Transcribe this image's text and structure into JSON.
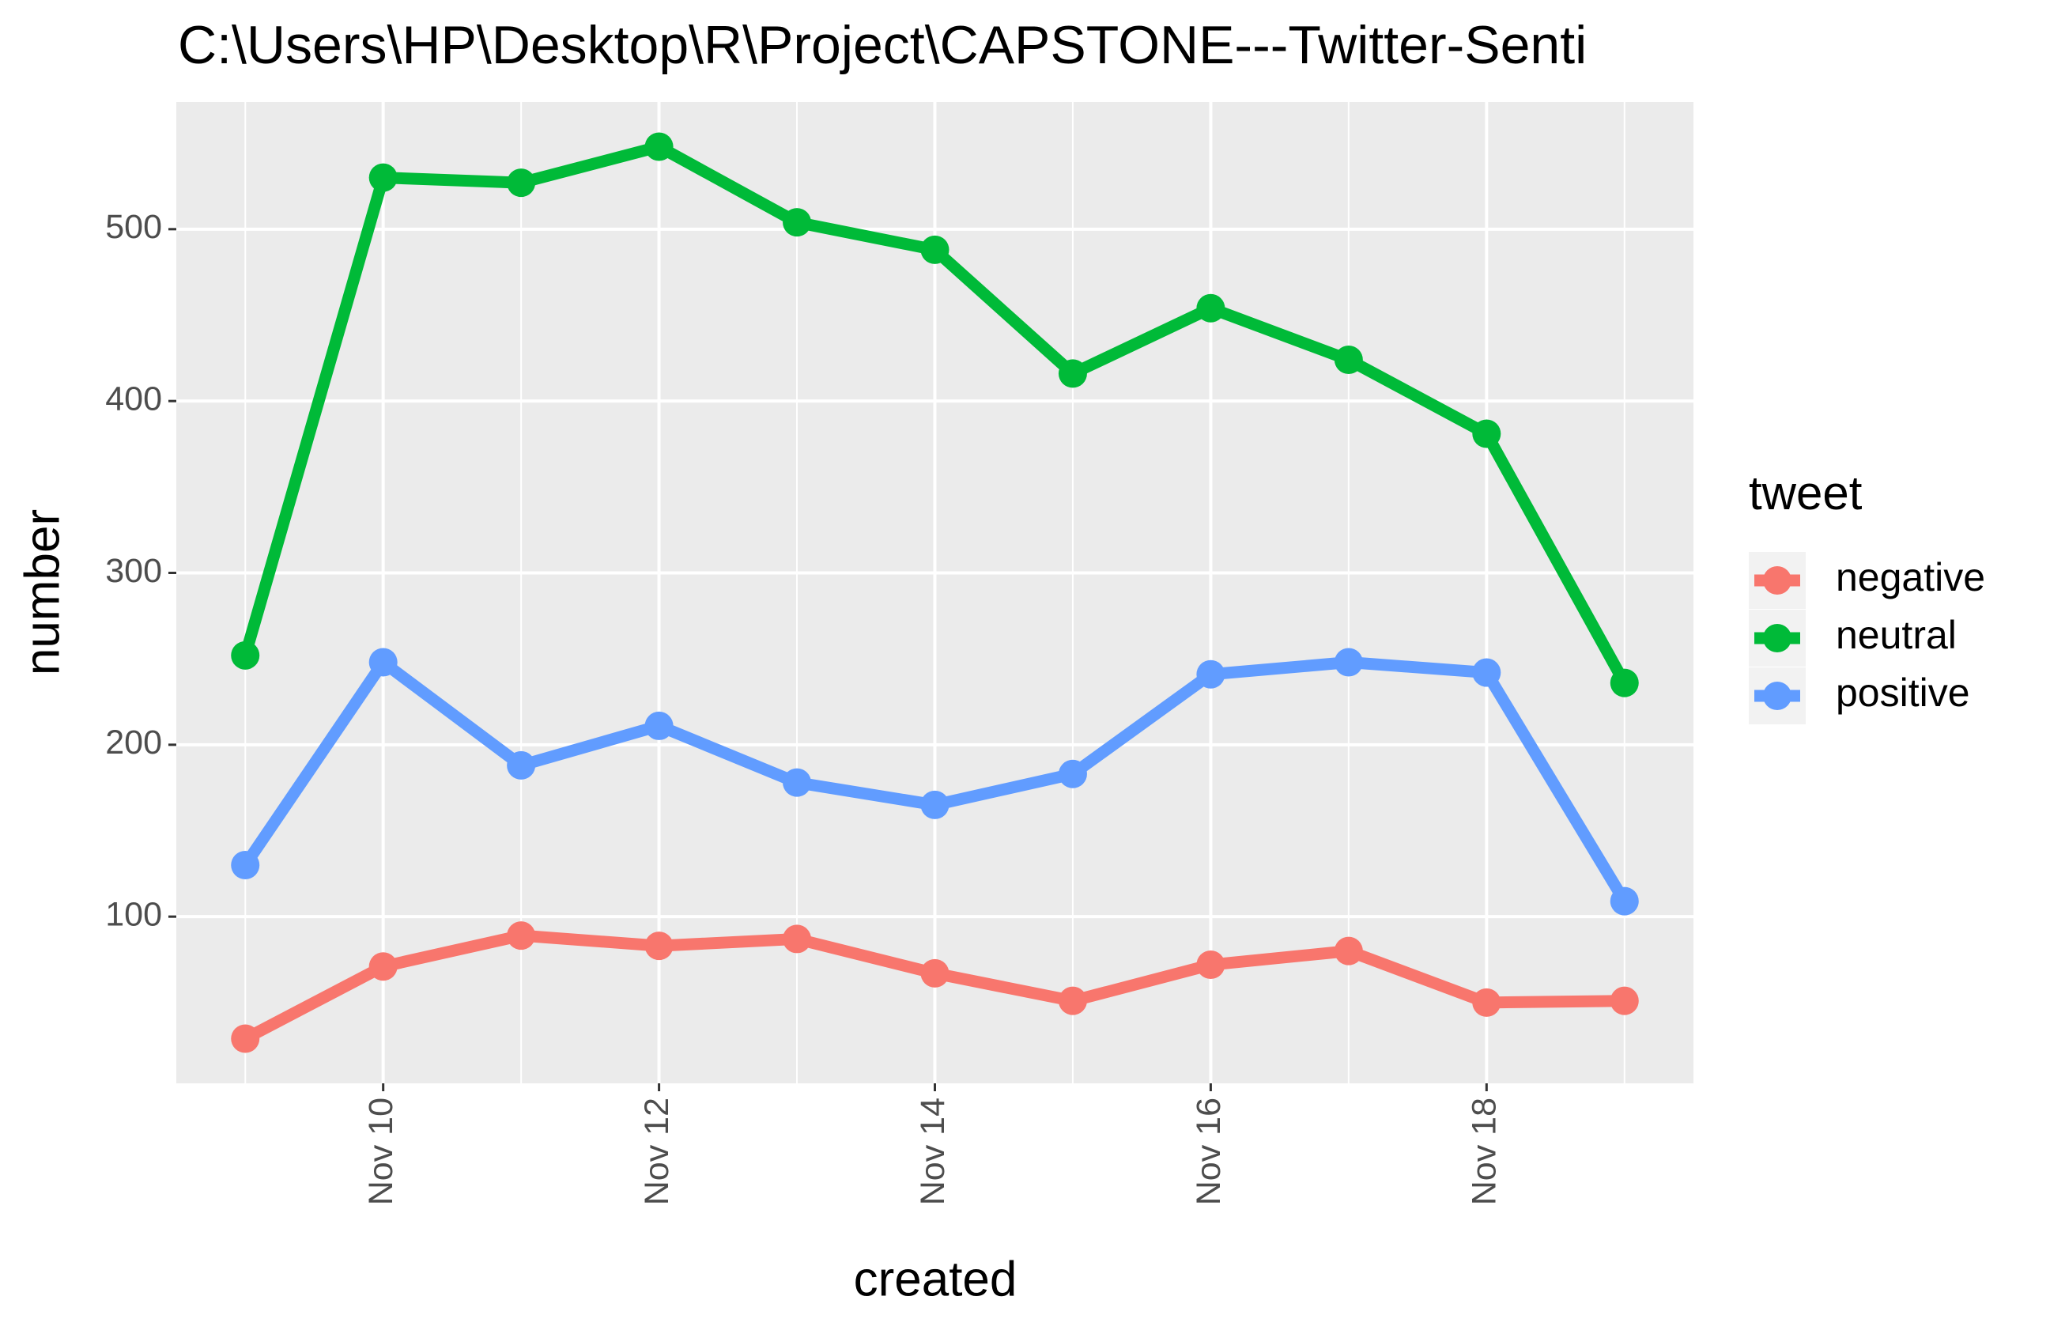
{
  "chart_data": {
    "type": "line",
    "title": "C:\\Users\\HP\\Desktop\\R\\Project\\CAPSTONE---Twitter-Senti",
    "x_label": "created",
    "y_label": "number",
    "x": [
      "Nov 9",
      "Nov 10",
      "Nov 11",
      "Nov 12",
      "Nov 13",
      "Nov 14",
      "Nov 15",
      "Nov 16",
      "Nov 17",
      "Nov 18",
      "Nov 19"
    ],
    "xticks": [
      "Nov 10",
      "Nov 12",
      "Nov 14",
      "Nov 16",
      "Nov 18"
    ],
    "ylim": [
      3,
      574
    ],
    "yticks": [
      100,
      200,
      300,
      400,
      500
    ],
    "grid": true,
    "legend_title": "tweet",
    "legend_position": "right",
    "series": [
      {
        "name": "negative",
        "color": "#f8766d",
        "values": [
          29,
          71,
          89,
          83,
          87,
          67,
          51,
          72,
          80,
          50,
          51
        ]
      },
      {
        "name": "neutral",
        "color": "#00ba38",
        "values": [
          252,
          530,
          527,
          548,
          504,
          488,
          416,
          454,
          424,
          381,
          236
        ]
      },
      {
        "name": "positive",
        "color": "#619cff",
        "values": [
          130,
          248,
          188,
          211,
          178,
          165,
          183,
          241,
          248,
          242,
          109
        ]
      }
    ]
  }
}
